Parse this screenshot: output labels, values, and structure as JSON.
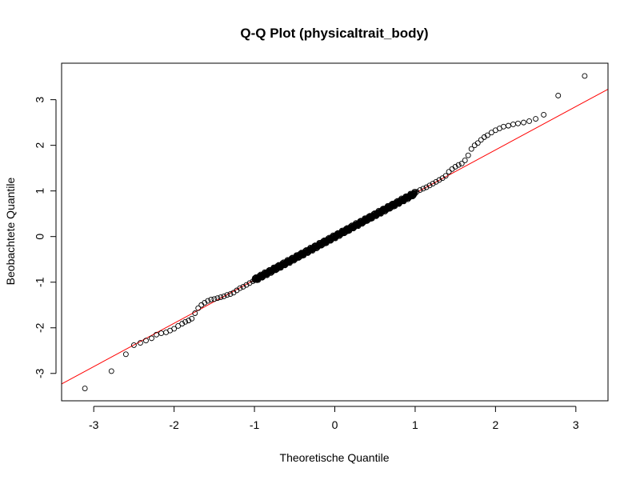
{
  "chart_data": {
    "type": "scatter",
    "title": "Q-Q Plot (physicaltrait_body)",
    "xlabel": "Theoretische Quantile",
    "ylabel": "Beobachtete Quantile",
    "xlim": [
      -3.4,
      3.4
    ],
    "ylim": [
      -3.6,
      3.8
    ],
    "xticks": [
      -3,
      -2,
      -1,
      0,
      1,
      2,
      3
    ],
    "yticks": [
      -3,
      -2,
      -1,
      0,
      1,
      2,
      3
    ],
    "grid": false,
    "point_style": "open-circle",
    "point_color": "#000000",
    "line_color": "#ff0000",
    "reference_line": {
      "type": "qqline",
      "intercept": 0.0,
      "slope": 0.95
    },
    "points": {
      "x": [
        -3.11,
        -2.78,
        -2.6,
        -2.5,
        -2.42,
        -2.35,
        -2.28,
        -2.22,
        -2.16,
        -2.1,
        -2.05,
        -2.0,
        -1.95,
        -1.9,
        -1.86,
        -1.82,
        -1.78,
        -1.74,
        -1.7,
        -1.66,
        -1.62,
        -1.58,
        -1.54,
        -1.5,
        -1.46,
        -1.42,
        -1.38,
        -1.34,
        -1.3,
        -1.26,
        -1.22,
        -1.18,
        -1.14,
        -1.1,
        -1.06,
        -1.02,
        1.02,
        1.06,
        1.1,
        1.14,
        1.18,
        1.22,
        1.26,
        1.3,
        1.34,
        1.38,
        1.42,
        1.46,
        1.5,
        1.54,
        1.58,
        1.62,
        1.66,
        1.7,
        1.74,
        1.78,
        1.82,
        1.86,
        1.9,
        1.95,
        2.0,
        2.05,
        2.1,
        2.16,
        2.22,
        2.28,
        2.35,
        2.42,
        2.5,
        2.6,
        2.78,
        3.11
      ],
      "y": [
        -3.33,
        -2.95,
        -2.58,
        -2.38,
        -2.33,
        -2.28,
        -2.23,
        -2.15,
        -2.12,
        -2.1,
        -2.06,
        -2.02,
        -1.96,
        -1.91,
        -1.87,
        -1.84,
        -1.8,
        -1.68,
        -1.57,
        -1.5,
        -1.45,
        -1.41,
        -1.38,
        -1.37,
        -1.35,
        -1.33,
        -1.31,
        -1.28,
        -1.26,
        -1.23,
        -1.18,
        -1.13,
        -1.1,
        -1.06,
        -1.02,
        -0.98,
        0.98,
        1.02,
        1.05,
        1.08,
        1.12,
        1.16,
        1.2,
        1.24,
        1.28,
        1.33,
        1.42,
        1.48,
        1.53,
        1.57,
        1.6,
        1.67,
        1.78,
        1.92,
        2.0,
        2.05,
        2.12,
        2.18,
        2.22,
        2.28,
        2.33,
        2.37,
        2.41,
        2.43,
        2.46,
        2.48,
        2.5,
        2.53,
        2.58,
        2.67,
        3.09,
        3.52
      ]
    }
  }
}
